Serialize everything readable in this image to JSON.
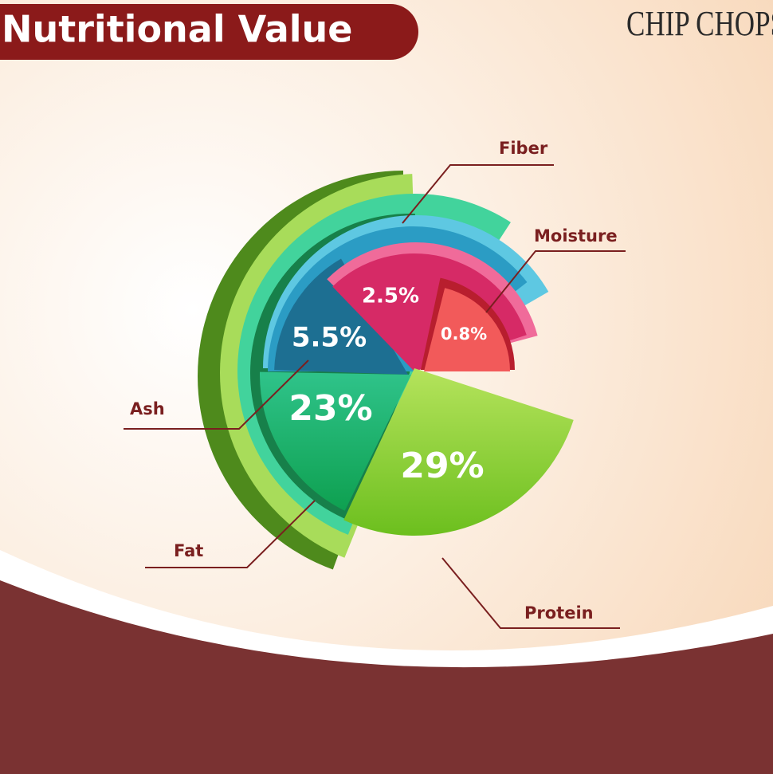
{
  "header": {
    "title": "Nutritional Value",
    "brand": "CHIP CHOPS"
  },
  "callouts": [
    "Fiber",
    "Moisture",
    "Ash",
    "Fat",
    "Protein"
  ],
  "percentages": [
    "2.5%",
    "0.8%",
    "5.5%",
    "23%",
    "29%"
  ]
}
